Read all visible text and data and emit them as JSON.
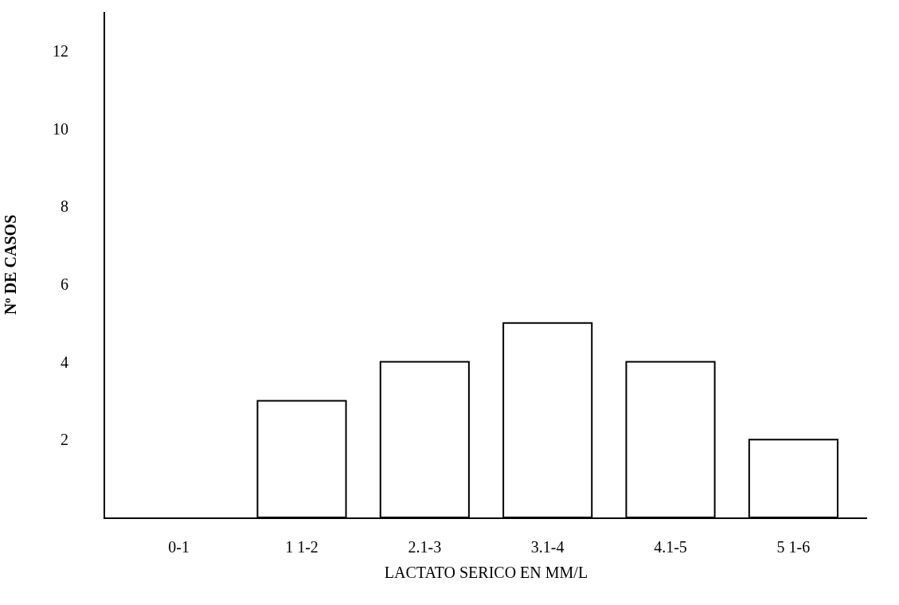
{
  "chart_data": {
    "type": "bar",
    "xlabel": "LACTATO SERICO EN MM/L",
    "ylabel": "Nº DE CASOS",
    "categories": [
      "0-1",
      "1 1-2",
      "2.1-3",
      "3.1-4",
      "4.1-5",
      "5 1-6"
    ],
    "values": [
      0,
      3,
      4,
      5,
      4,
      2
    ],
    "color": "#ffffff",
    "ylim": [
      0,
      13
    ],
    "yticks": [
      2,
      4,
      6,
      8,
      10,
      12
    ]
  }
}
